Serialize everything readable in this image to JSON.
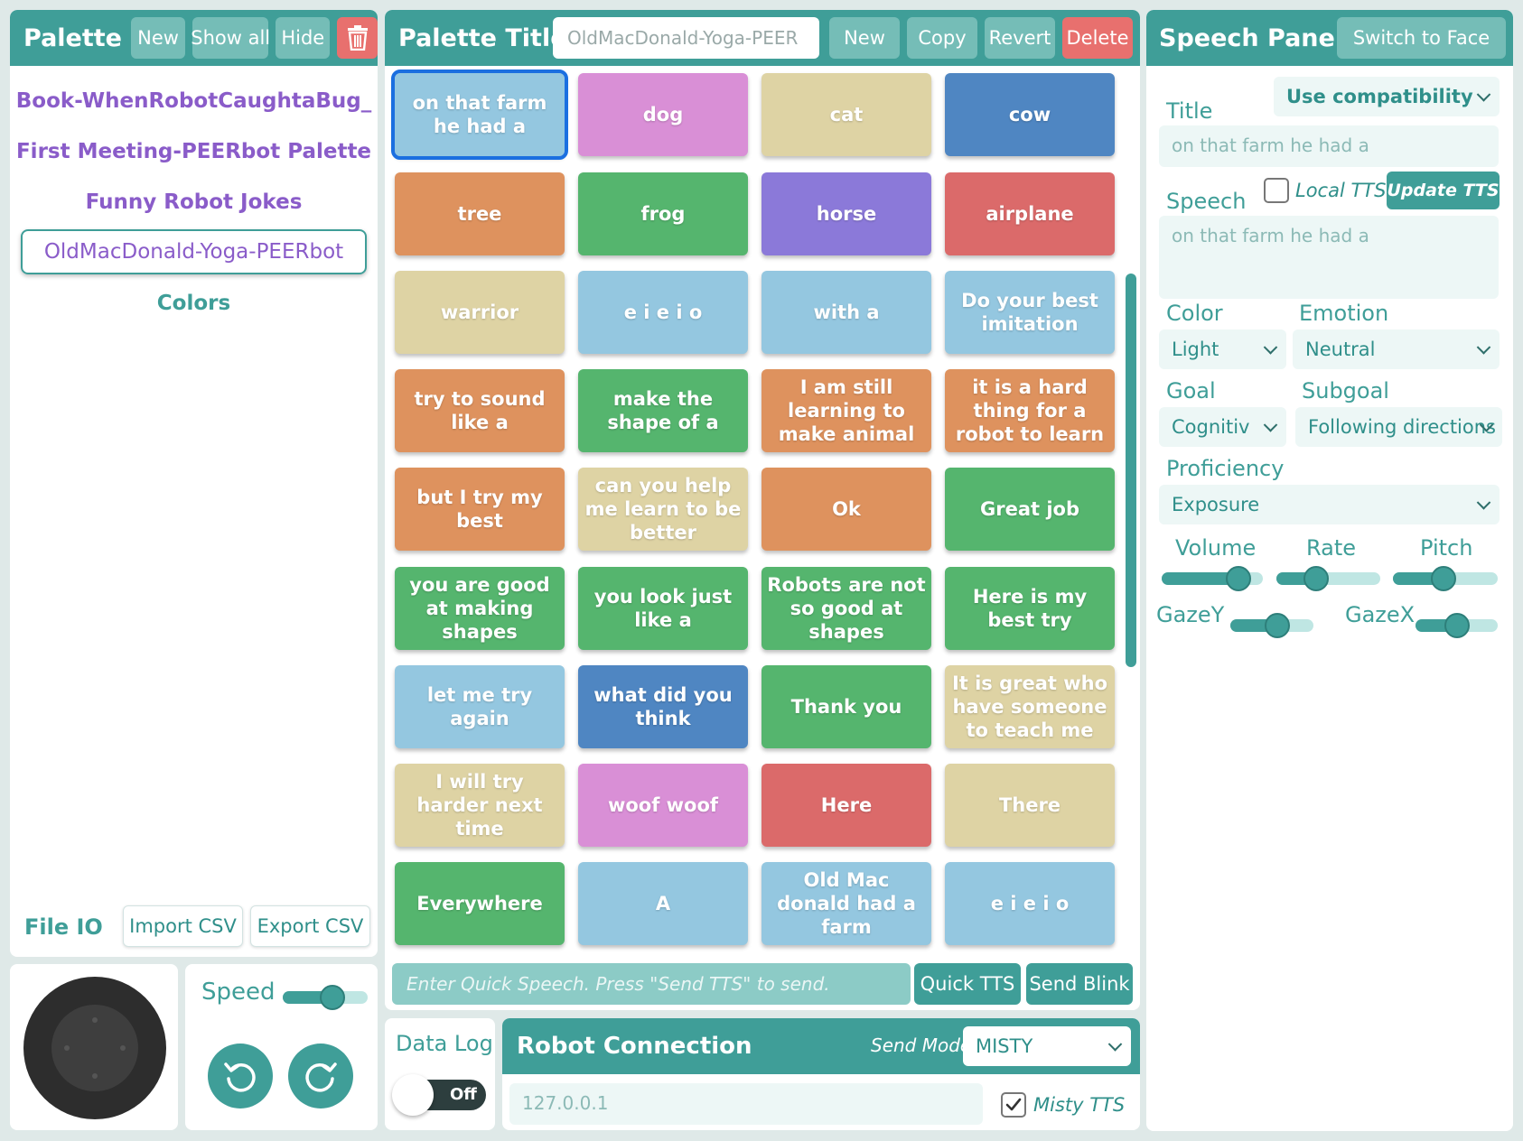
{
  "palette": {
    "title": "Palette",
    "new_label": "New",
    "show_all_label": "Show all",
    "hide_label": "Hide",
    "items": [
      "Book-WhenRobotCaughtaBug_",
      "First Meeting-PEERbot Palette",
      "Funny Robot Jokes",
      "OldMacDonald-Yoga-PEERbot",
      "Colors"
    ],
    "file_io_label": "File IO",
    "import_label": "Import CSV",
    "export_label": "Export CSV"
  },
  "editor": {
    "title_label": "Palette Title:",
    "title_value": "OldMacDonald-Yoga-PEER",
    "new_label": "New",
    "copy_label": "Copy",
    "revert_label": "Revert",
    "delete_label": "Delete",
    "tiles": [
      {
        "text": "on that farm he had a",
        "color": "#94c7e0"
      },
      {
        "text": "dog",
        "color": "#d98fd6"
      },
      {
        "text": "cat",
        "color": "#ded3a4"
      },
      {
        "text": "cow",
        "color": "#4f86c2"
      },
      {
        "text": "tree",
        "color": "#de925e"
      },
      {
        "text": "frog",
        "color": "#55b56e"
      },
      {
        "text": "horse",
        "color": "#8b79d9"
      },
      {
        "text": "airplane",
        "color": "#db6a6a"
      },
      {
        "text": "warrior",
        "color": "#ded3a4"
      },
      {
        "text": "e i e i o",
        "color": "#94c7e0"
      },
      {
        "text": "with a",
        "color": "#94c7e0"
      },
      {
        "text": "Do your best imitation",
        "color": "#94c7e0"
      },
      {
        "text": "try to sound like a",
        "color": "#de925e"
      },
      {
        "text": "make the shape of a",
        "color": "#55b56e"
      },
      {
        "text": "I am still learning to make animal",
        "color": "#de925e"
      },
      {
        "text": "it is a hard thing for a robot to learn",
        "color": "#de925e"
      },
      {
        "text": "but I try my best",
        "color": "#de925e"
      },
      {
        "text": "can you help me learn to be better",
        "color": "#ded3a4"
      },
      {
        "text": "Ok",
        "color": "#de925e"
      },
      {
        "text": "Great job",
        "color": "#55b56e"
      },
      {
        "text": "you are good at making shapes",
        "color": "#55b56e"
      },
      {
        "text": "you look just like a",
        "color": "#55b56e"
      },
      {
        "text": "Robots are not so good at shapes",
        "color": "#55b56e"
      },
      {
        "text": "Here is my best try",
        "color": "#55b56e"
      },
      {
        "text": "let me try again",
        "color": "#94c7e0"
      },
      {
        "text": "what did you think",
        "color": "#4f86c2"
      },
      {
        "text": "Thank you",
        "color": "#55b56e"
      },
      {
        "text": "It is great who have someone to teach me",
        "color": "#ded3a4"
      },
      {
        "text": "I will try harder next time",
        "color": "#ded3a4"
      },
      {
        "text": "woof woof",
        "color": "#d98fd6"
      },
      {
        "text": "Here",
        "color": "#db6a6a"
      },
      {
        "text": "There",
        "color": "#ded3a4"
      },
      {
        "text": "Everywhere",
        "color": "#55b56e"
      },
      {
        "text": "A",
        "color": "#94c7e0"
      },
      {
        "text": "Old Mac donald had a farm",
        "color": "#94c7e0"
      },
      {
        "text": "e i e i o",
        "color": "#94c7e0"
      }
    ],
    "quick_placeholder": "Enter Quick Speech. Press \"Send TTS\" to send.",
    "quick_tts_label": "Quick TTS",
    "send_blink_label": "Send Blink"
  },
  "speech": {
    "title": "Speech Panel",
    "switch_label": "Switch to Face",
    "compat_value": "Use compatibility",
    "title_label": "Title",
    "title_value": "on that farm he had a",
    "speech_label": "Speech",
    "local_tts_label": "Local TTS",
    "local_tts_checked": false,
    "update_tts_label": "Update TTS",
    "speech_value": "on that farm he had a",
    "color_label": "Color",
    "color_value": "Light",
    "emotion_label": "Emotion",
    "emotion_value": "Neutral",
    "goal_label": "Goal",
    "goal_value": "Cognitiv",
    "subgoal_label": "Subgoal",
    "subgoal_value": "Following directions",
    "proficiency_label": "Proficiency",
    "proficiency_value": "Exposure",
    "volume_label": "Volume",
    "volume_level": 0.85,
    "rate_label": "Rate",
    "rate_level": 0.35,
    "pitch_label": "Pitch",
    "pitch_level": 0.48,
    "gazey_label": "GazeY",
    "gazey_level": 0.6,
    "gazex_label": "GazeX",
    "gazex_level": 0.5
  },
  "controls": {
    "speed_label": "Speed",
    "speed_level": 0.62,
    "data_log_label": "Data Log",
    "data_log_state": "Off",
    "robot_connection_label": "Robot Connection",
    "send_mode_label": "Send Mode",
    "send_mode_value": "MISTY",
    "ip_value": "127.0.0.1",
    "misty_tts_label": "Misty TTS",
    "misty_tts_checked": true
  },
  "colors": {
    "accent": "#3f9e98",
    "palette_link": "#8a5cc9",
    "delete": "#e8706e"
  }
}
